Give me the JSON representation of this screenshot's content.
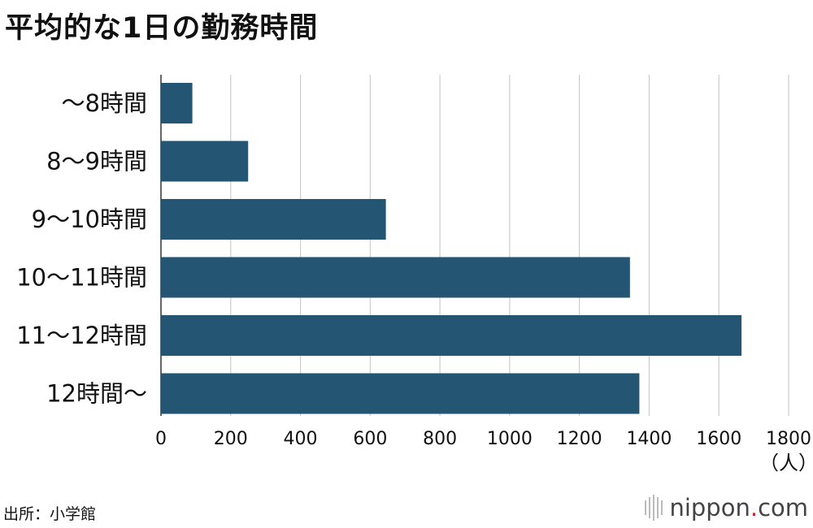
{
  "chart_data": {
    "type": "bar",
    "orientation": "horizontal",
    "title": "平均的な1日の勤務時間",
    "categories": [
      "〜8時間",
      "8〜9時間",
      "9〜10時間",
      "10〜11時間",
      "11〜12時間",
      "12時間〜"
    ],
    "values": [
      90,
      250,
      645,
      1345,
      1665,
      1372
    ],
    "xlim": [
      0,
      1800
    ],
    "xticks": [
      "0",
      "200",
      "400",
      "600",
      "800",
      "1000",
      "1200",
      "1400",
      "1600",
      "1800"
    ],
    "unit_label": "（人）",
    "grid": true,
    "bar_color": "#245673",
    "grid_color": "#cccccc"
  },
  "source": "出所：小学館",
  "logo": {
    "name": "nippon",
    "dot": ".",
    "tld": "com",
    "accent": "#c3262e"
  }
}
